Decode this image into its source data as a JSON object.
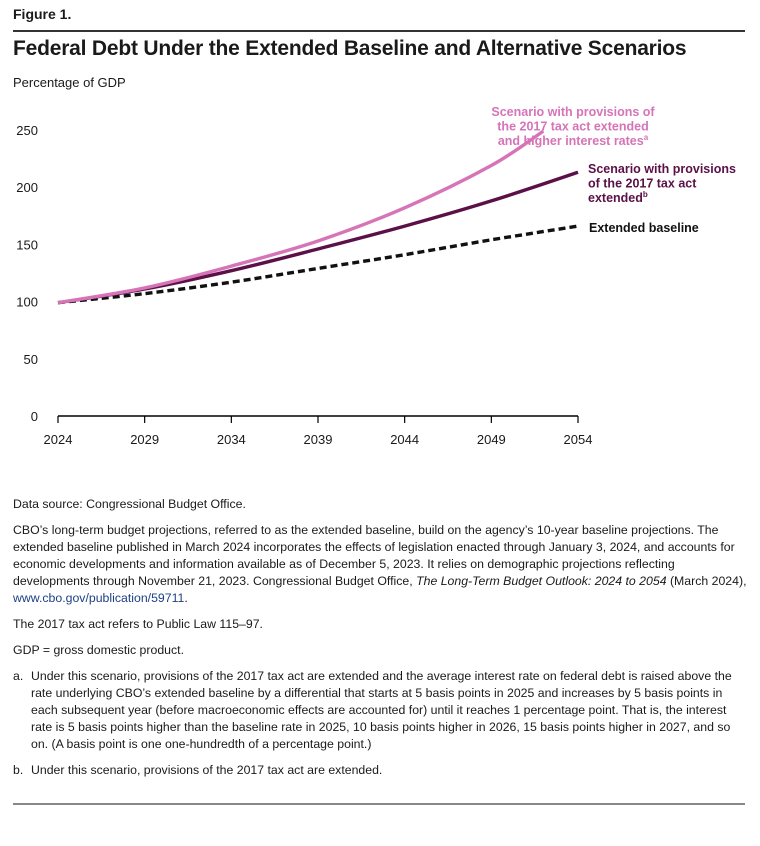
{
  "figure": {
    "label": "Figure 1.",
    "title": "Federal Debt Under the Extended Baseline and Alternative Scenarios",
    "units": "Percentage of GDP"
  },
  "colors": {
    "high_rates": "#d674b7",
    "tax_ext": "#5b1047",
    "baseline": "#111111",
    "axis": "#000000",
    "text": "#1a1a1a",
    "link": "#1f3f85"
  },
  "chart_data": {
    "type": "line",
    "title": "Federal Debt Under the Extended Baseline and Alternative Scenarios",
    "xlabel": "",
    "ylabel": "Percentage of GDP",
    "xlim": [
      2024,
      2054
    ],
    "ylim": [
      0,
      250
    ],
    "xticks": [
      2024,
      2029,
      2034,
      2039,
      2044,
      2049,
      2054
    ],
    "yticks": [
      0,
      50,
      100,
      150,
      200,
      250
    ],
    "grid": false,
    "x": [
      2024,
      2029,
      2034,
      2039,
      2044,
      2049,
      2052,
      2054
    ],
    "series": [
      {
        "name": "Scenario with provisions of the 2017 tax act extended and higher interest rates",
        "label_lines": [
          "Scenario with provisions of",
          "the 2017 tax act extended",
          "and higher interest rates"
        ],
        "label_superscript": "a",
        "color_key": "high_rates",
        "style": "solid",
        "x": [
          2024,
          2029,
          2034,
          2039,
          2044,
          2049,
          2052
        ],
        "values": [
          99,
          112,
          131,
          153,
          182,
          219,
          249
        ]
      },
      {
        "name": "Scenario with provisions of the 2017 tax act extended",
        "label_lines": [
          "Scenario with provisions",
          "of the 2017 tax act",
          "extended"
        ],
        "label_superscript": "b",
        "color_key": "tax_ext",
        "style": "solid",
        "x": [
          2024,
          2029,
          2034,
          2039,
          2044,
          2049,
          2054
        ],
        "values": [
          99,
          111,
          127,
          146,
          166,
          188,
          213
        ]
      },
      {
        "name": "Extended baseline",
        "label_lines": [
          "Extended baseline"
        ],
        "label_superscript": "",
        "color_key": "baseline",
        "style": "dashed",
        "x": [
          2024,
          2029,
          2034,
          2039,
          2044,
          2049,
          2054
        ],
        "values": [
          99,
          107,
          117,
          129,
          141,
          154,
          166
        ]
      }
    ]
  },
  "notes": {
    "source": "Data source: Congressional Budget Office.",
    "para1_pre": "CBO’s long-term budget projections, referred to as the extended baseline, build on the agency’s 10-year baseline projections. The extended baseline published in March 2024 incorporates the effects of legislation enacted through January 3, 2024, and accounts for economic developments and information available as of December 5, 2023. It relies on demographic projections reflecting developments through November 21, 2023. Congressional Budget Office, ",
    "para1_italic": "The Long-Term Budget Outlook: 2024 to 2054",
    "para1_mid": " (March 2024), ",
    "para1_link": "www.cbo.gov/publication/59711",
    "para1_end": ".",
    "tax_act": "The 2017 tax act refers to Public Law 115–97.",
    "gdp": "GDP = gross domestic product.",
    "a_letter": "a.",
    "a_text": "Under this scenario, provisions of the 2017 tax act are extended and the average interest rate on federal debt is raised above the rate underlying CBO’s extended baseline by a differential that starts at 5 basis points in 2025 and increases by 5 basis points in each subsequent year (before macroeconomic effects are accounted for) until it reaches 1 percentage point. That is, the interest rate is 5 basis points higher than the baseline rate in 2025, 10 basis points higher in 2026, 15 basis points higher in 2027, and so on. (A basis point is one one-hundredth of a percentage point.)",
    "b_letter": "b.",
    "b_text": "Under this scenario, provisions of the 2017 tax act are extended."
  }
}
